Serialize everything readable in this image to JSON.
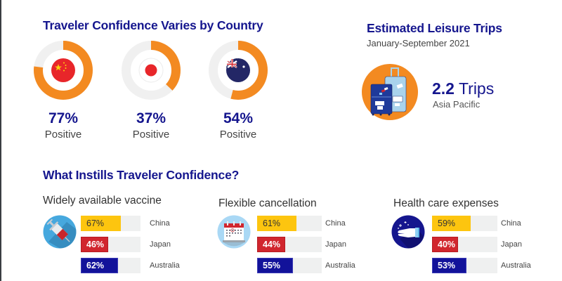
{
  "colors": {
    "heading_blue": "#15168e",
    "orange": "#f38a21",
    "ring_track": "#f0f0f0",
    "china_yellow": "#fdc50f",
    "japan_red": "#d1262e",
    "australia_navy": "#12129a",
    "bar_track": "#eff0f0"
  },
  "confidence": {
    "title": "Traveler Confidence Varies by Country",
    "countries": [
      {
        "country": "China",
        "flag_icon": "china-flag-icon",
        "value": 77,
        "value_label": "77%",
        "caption": "Positive"
      },
      {
        "country": "Japan",
        "flag_icon": "japan-flag-icon",
        "value": 37,
        "value_label": "37%",
        "caption": "Positive"
      },
      {
        "country": "Australia",
        "flag_icon": "australia-flag-icon",
        "value": 54,
        "value_label": "54%",
        "caption": "Positive"
      }
    ]
  },
  "leisure": {
    "title": "Estimated Leisure Trips",
    "period": "January-September 2021",
    "icon": "suitcase-icon",
    "value": "2.2",
    "unit": " Trips",
    "region": "Asia Pacific"
  },
  "instills": {
    "title": "What Instills Traveler Confidence?",
    "factors": [
      {
        "title": "Widely available vaccine",
        "icon": "syringe-icon",
        "bars": [
          {
            "country": "China",
            "value": 67,
            "label": "67%"
          },
          {
            "country": "Japan",
            "value": 46,
            "label": "46%"
          },
          {
            "country": "Australia",
            "value": 62,
            "label": "62%"
          }
        ]
      },
      {
        "title": "Flexible cancellation",
        "icon": "calendar-icon",
        "bars": [
          {
            "country": "China",
            "value": 61,
            "label": "61%"
          },
          {
            "country": "Japan",
            "value": 44,
            "label": "44%"
          },
          {
            "country": "Australia",
            "value": 55,
            "label": "55%"
          }
        ]
      },
      {
        "title": "Health care expenses",
        "icon": "hand-sanitizer-icon",
        "bars": [
          {
            "country": "China",
            "value": 59,
            "label": "59%"
          },
          {
            "country": "Japan",
            "value": 40,
            "label": "40%"
          },
          {
            "country": "Australia",
            "value": 53,
            "label": "53%"
          }
        ]
      }
    ]
  }
}
